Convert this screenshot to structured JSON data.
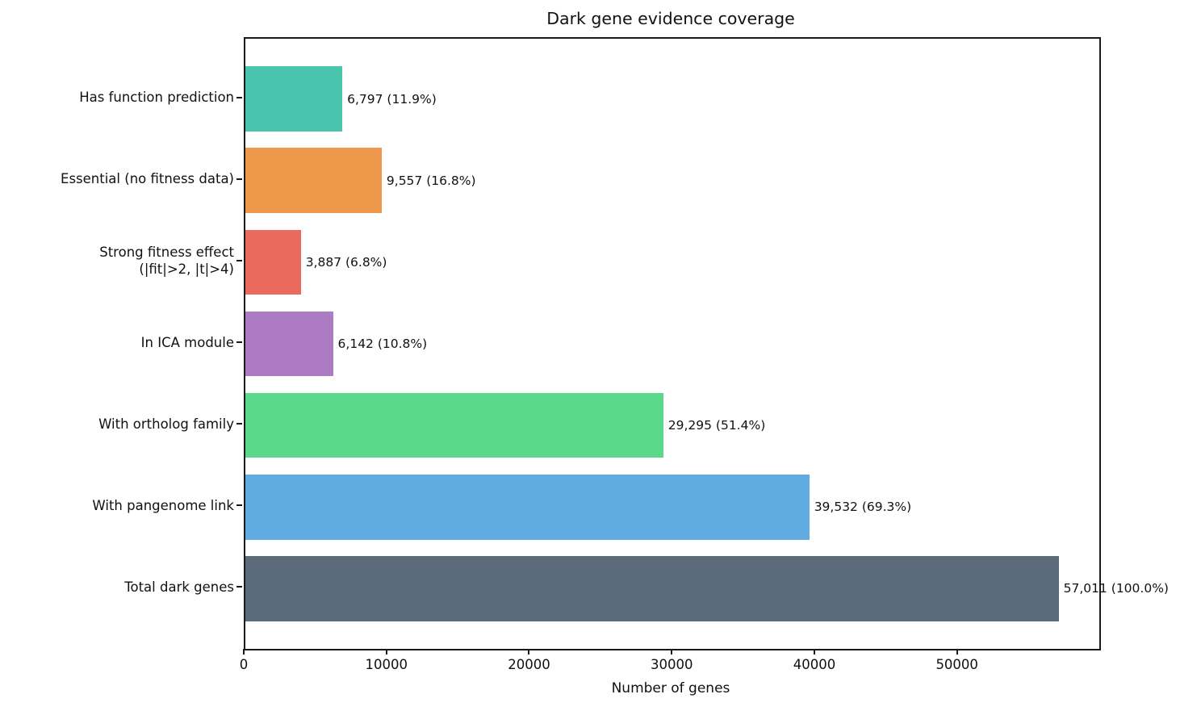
{
  "chart_data": {
    "type": "bar",
    "orientation": "horizontal",
    "title": "Dark gene evidence coverage",
    "xlabel": "Number of genes",
    "ylabel": "",
    "grid": false,
    "legend": "none",
    "xlim": [
      0,
      59862
    ],
    "xticks": [
      0,
      10000,
      20000,
      30000,
      40000,
      50000
    ],
    "bar_height_fraction": 0.8,
    "rows_top_to_bottom": [
      {
        "label": "Has function prediction",
        "label_lines": [
          "Has function prediction"
        ],
        "value": 6797,
        "percent": 11.9,
        "annotation": "6,797 (11.9%)",
        "color": "#48C5AC"
      },
      {
        "label": "Essential (no fitness data)",
        "label_lines": [
          "Essential (no fitness data)"
        ],
        "value": 9557,
        "percent": 16.8,
        "annotation": "9,557 (16.8%)",
        "color": "#EC9749"
      },
      {
        "label": "Strong fitness effect (|fit|>2, |t|>4)",
        "label_lines": [
          "Strong fitness effect",
          "(|fit|>2, |t|>4)"
        ],
        "value": 3887,
        "percent": 6.8,
        "annotation": "3,887 (6.8%)",
        "color": "#EB6A5E"
      },
      {
        "label": "In ICA module",
        "label_lines": [
          "In ICA module"
        ],
        "value": 6142,
        "percent": 10.8,
        "annotation": "6,142 (10.8%)",
        "color": "#AC7BC4"
      },
      {
        "label": "With ortholog family",
        "label_lines": [
          "With ortholog family"
        ],
        "value": 29295,
        "percent": 51.4,
        "annotation": "29,295 (51.4%)",
        "color": "#5BD98A"
      },
      {
        "label": "With pangenome link",
        "label_lines": [
          "With pangenome link"
        ],
        "value": 39532,
        "percent": 69.3,
        "annotation": "39,532 (69.3%)",
        "color": "#60ACE0"
      },
      {
        "label": "Total dark genes",
        "label_lines": [
          "Total dark genes"
        ],
        "value": 57011,
        "percent": 100.0,
        "annotation": "57,011 (100.0%)",
        "color": "#5C6B7B"
      }
    ],
    "colors": {
      "spine": "#1a1a1a",
      "text": "#111111",
      "background": "#ffffff"
    }
  }
}
